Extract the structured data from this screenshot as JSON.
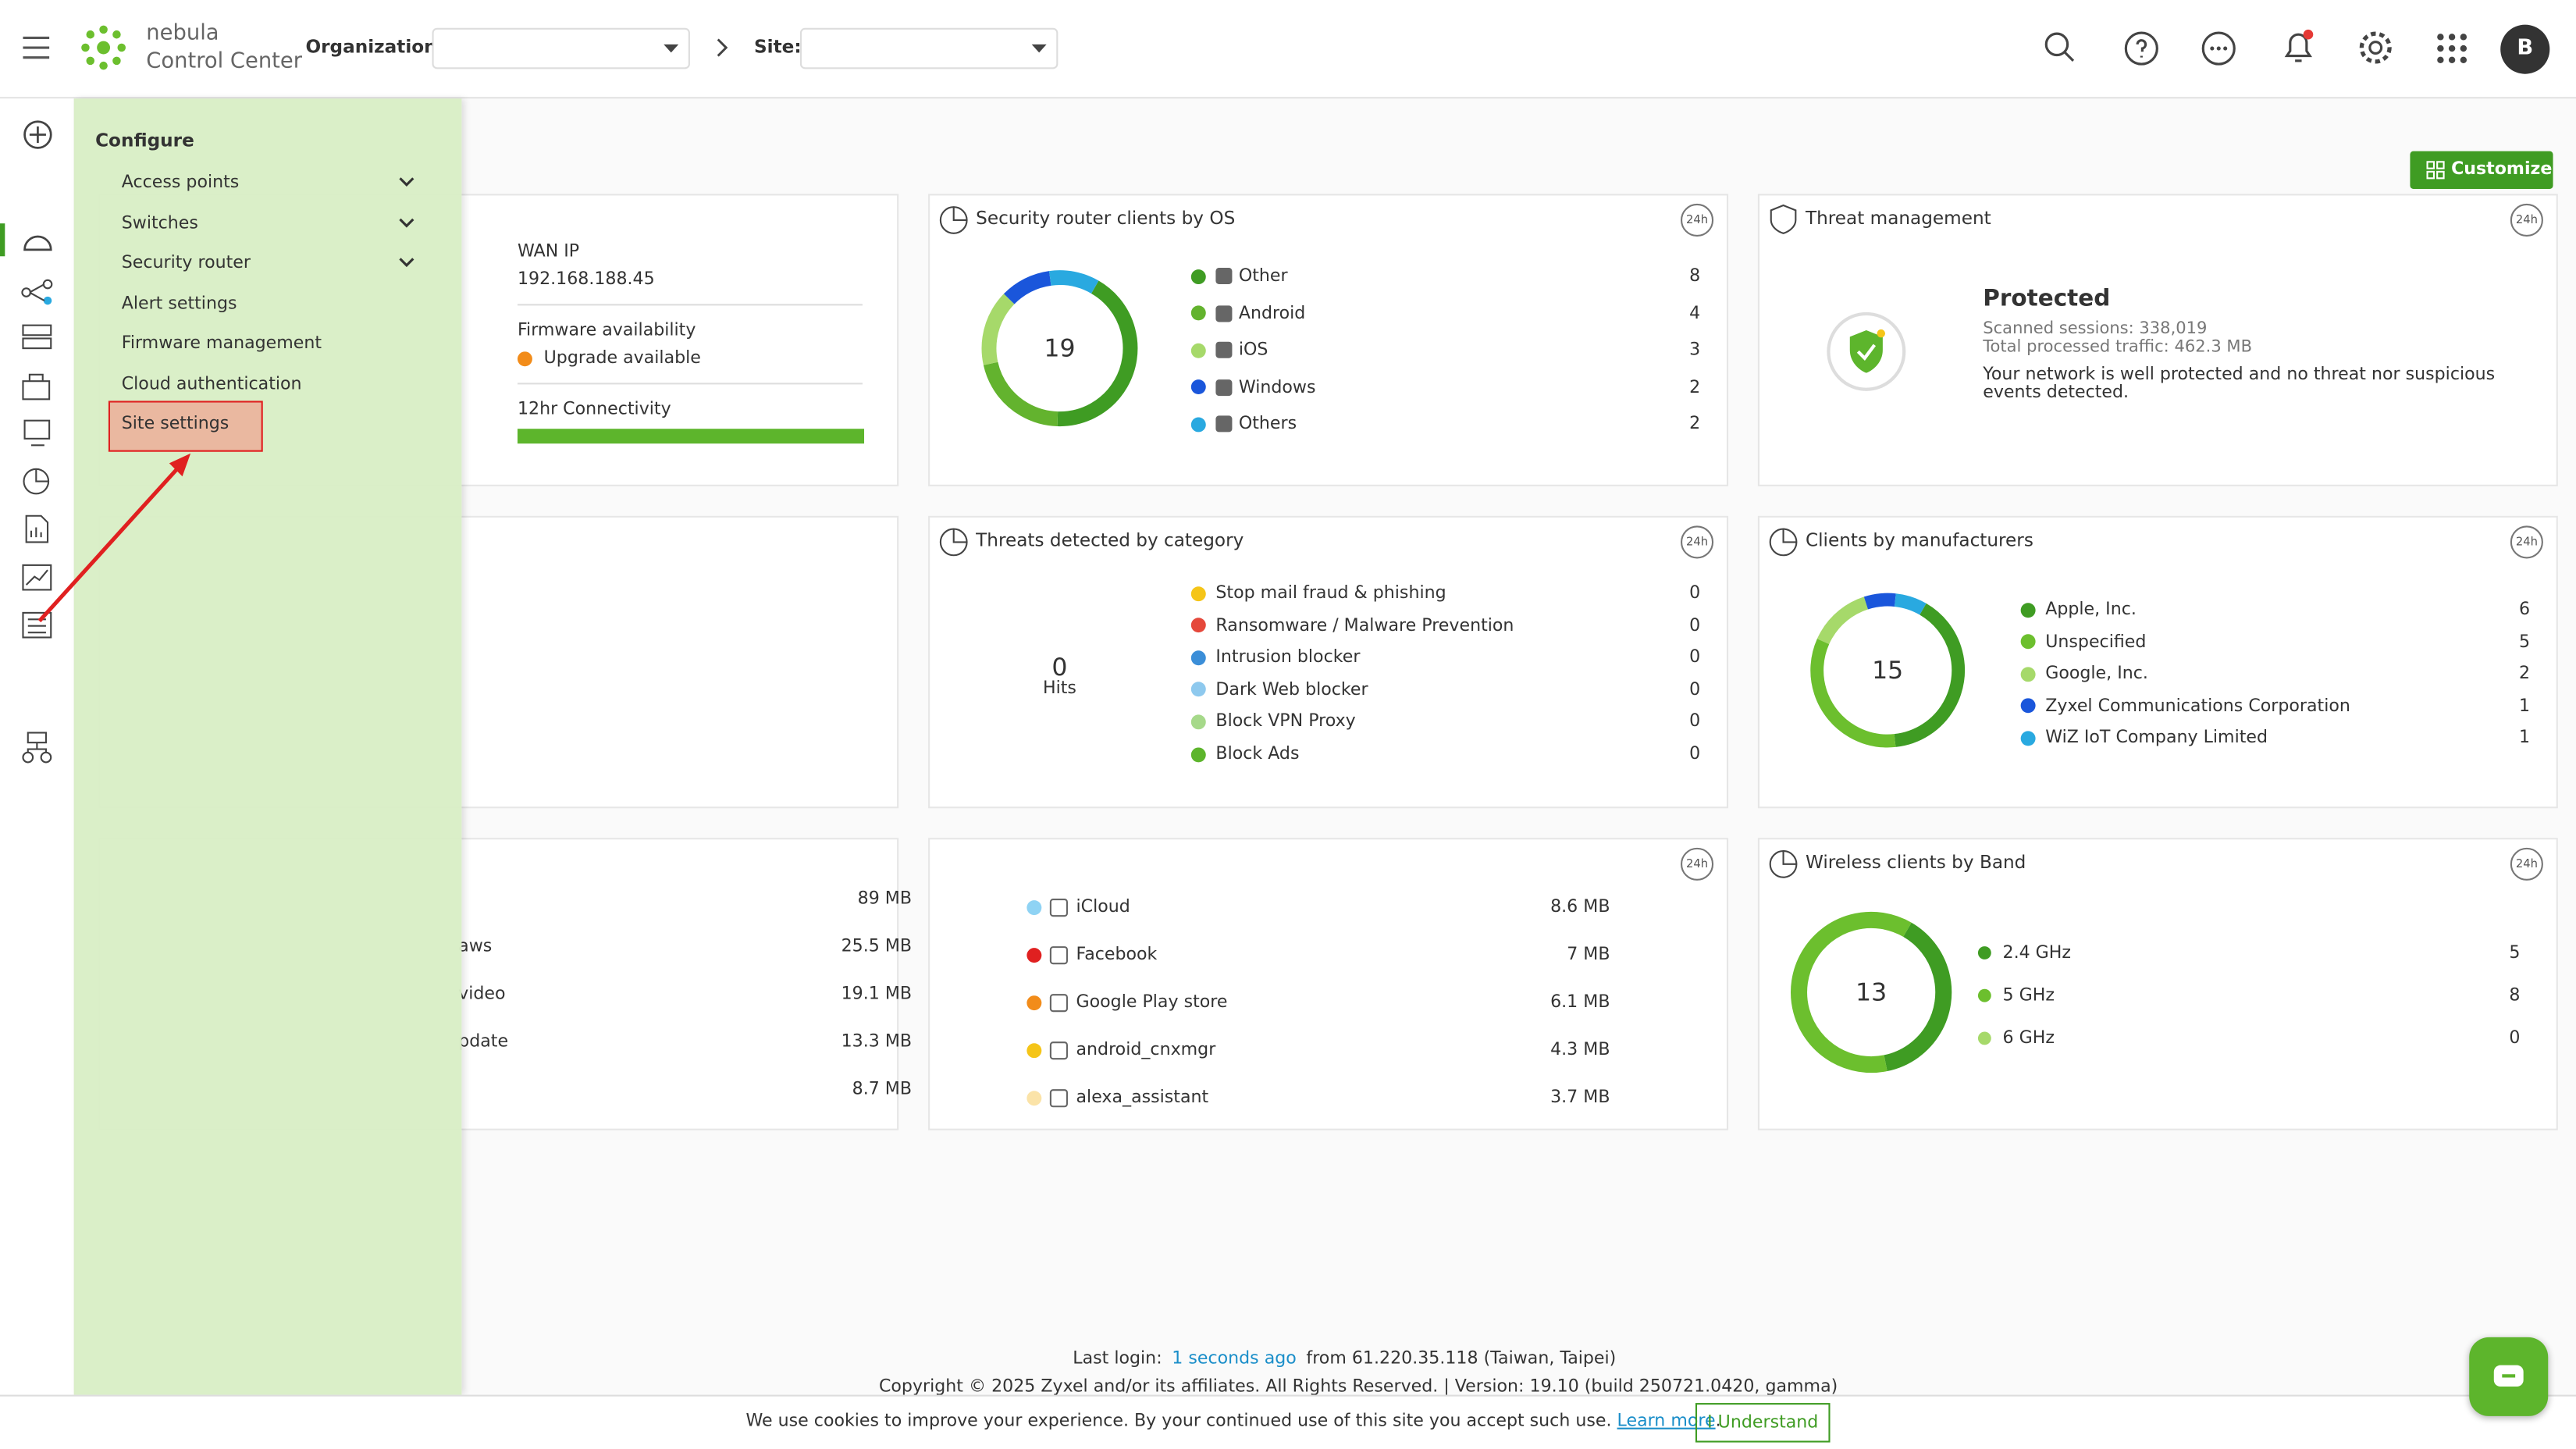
{
  "header": {
    "brand_line1": "nebula",
    "brand_line2": "Control Center",
    "org_label": "Organization:",
    "site_label": "Site:",
    "avatar": "B"
  },
  "menu": {
    "title": "Configure",
    "items": [
      {
        "label": "Access points",
        "expandable": true,
        "highlighted": false
      },
      {
        "label": "Switches",
        "expandable": true,
        "highlighted": false
      },
      {
        "label": "Security router",
        "expandable": true,
        "highlighted": false
      },
      {
        "label": "Alert settings",
        "expandable": false,
        "highlighted": false
      },
      {
        "label": "Firmware management",
        "expandable": false,
        "highlighted": false
      },
      {
        "label": "Cloud authentication",
        "expandable": false,
        "highlighted": false
      },
      {
        "label": "Site settings",
        "expandable": false,
        "highlighted": true
      }
    ]
  },
  "customize": "Customize",
  "badge": "24h",
  "wan": {
    "wan_ip_label": "WAN IP",
    "wan_ip": "192.168.188.45",
    "firmware_label": "Firmware availability",
    "firmware_status": "Upgrade available",
    "connectivity_label": "12hr Connectivity"
  },
  "os": {
    "title": "Security router clients by OS",
    "total": 19,
    "items": [
      {
        "name": "Other",
        "value": 8,
        "color": "#3f9c23"
      },
      {
        "name": "Android",
        "value": 4,
        "color": "#63b32e"
      },
      {
        "name": "iOS",
        "value": 3,
        "color": "#a6d96a"
      },
      {
        "name": "Windows",
        "value": 2,
        "color": "#1a56db"
      },
      {
        "name": "Others",
        "value": 2,
        "color": "#29a9e0"
      }
    ]
  },
  "threat": {
    "title": "Threat management",
    "status": "Protected",
    "sessions": "Scanned sessions: 338,019",
    "traffic": "Total processed traffic: 462.3 MB",
    "description": "Your network is well protected and no threat nor suspicious events detected."
  },
  "threats": {
    "title": "Threats detected by category",
    "total": 0,
    "unit": "Hits",
    "items": [
      {
        "name": "Stop mail fraud & phishing",
        "value": 0,
        "color": "#f5c518"
      },
      {
        "name": "Ransomware / Malware Prevention",
        "value": 0,
        "color": "#e5483b"
      },
      {
        "name": "Intrusion blocker",
        "value": 0,
        "color": "#3b8ed8"
      },
      {
        "name": "Dark Web blocker",
        "value": 0,
        "color": "#8ec9ee"
      },
      {
        "name": "Block VPN Proxy",
        "value": 0,
        "color": "#a6d98a"
      },
      {
        "name": "Block Ads",
        "value": 0,
        "color": "#5db52c"
      }
    ]
  },
  "manufacturers": {
    "title": "Clients by manufacturers",
    "total": 15,
    "items": [
      {
        "name": "Apple, Inc.",
        "value": 6,
        "color": "#3f9c23"
      },
      {
        "name": "Unspecified",
        "value": 5,
        "color": "#6cbf2e"
      },
      {
        "name": "Google, Inc.",
        "value": 2,
        "color": "#a6d96a"
      },
      {
        "name": "Zyxel Communications Corporation",
        "value": 1,
        "color": "#1a56db"
      },
      {
        "name": "WiZ IoT Company Limited",
        "value": 1,
        "color": "#29a9e0"
      }
    ]
  },
  "apps": {
    "left": [
      {
        "value": "89 MB"
      },
      {
        "name": "aws",
        "value": "25.5 MB"
      },
      {
        "name": "video",
        "value": "19.1 MB"
      },
      {
        "name": "pdate",
        "value": "13.3 MB"
      },
      {
        "value": "8.7 MB"
      }
    ],
    "right": [
      {
        "name": "iCloud",
        "value": "8.6 MB",
        "color": "#8fd3f4"
      },
      {
        "name": "Facebook",
        "value": "7 MB",
        "color": "#e02020"
      },
      {
        "name": "Google Play store",
        "value": "6.1 MB",
        "color": "#f28c1a"
      },
      {
        "name": "android_cnxmgr",
        "value": "4.3 MB",
        "color": "#f5c518"
      },
      {
        "name": "alexa_assistant",
        "value": "3.7 MB",
        "color": "#fbe3a8"
      }
    ]
  },
  "band": {
    "title": "Wireless clients by Band",
    "total": 13,
    "items": [
      {
        "name": "2.4 GHz",
        "value": 5,
        "color": "#3f9c23"
      },
      {
        "name": "5 GHz",
        "value": 8,
        "color": "#6cbf2e"
      },
      {
        "name": "6 GHz",
        "value": 0,
        "color": "#a6d96a"
      }
    ]
  },
  "footer": {
    "last_login_label": "Last login:",
    "last_login_time": "1 seconds ago",
    "last_login_from": "from 61.220.35.118 (Taiwan, Taipei)",
    "copyright": "Copyright © 2025 Zyxel and/or its affiliates. All Rights Reserved. | Version: 19.10 (build 250721.0420, gamma)"
  },
  "cookie": {
    "text": "We use cookies to improve your experience. By your continued use of this site you accept such use.",
    "link": "Learn more",
    "link_suffix": ".",
    "button": "I Understand"
  }
}
